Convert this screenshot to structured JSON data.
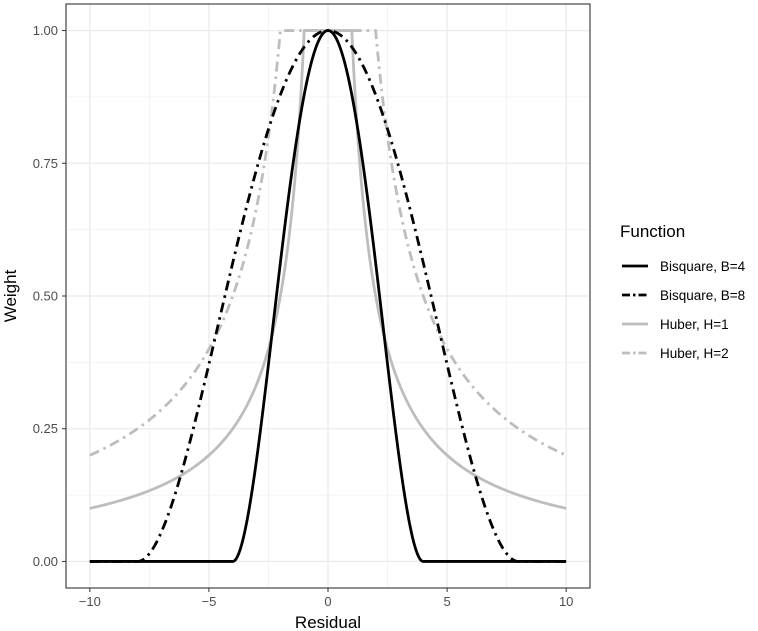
{
  "chart_data": {
    "type": "line",
    "title": "",
    "xlabel": "Residual",
    "ylabel": "Weight",
    "xlim": [
      -11,
      11
    ],
    "ylim": [
      -0.05,
      1.05
    ],
    "xticks": [
      -10,
      -5,
      0,
      5,
      10
    ],
    "xtick_labels": [
      "−10",
      "−5",
      "0",
      "5",
      "10"
    ],
    "yticks": [
      0,
      0.25,
      0.5,
      0.75,
      1.0
    ],
    "ytick_labels": [
      "0.00",
      "0.25",
      "0.50",
      "0.75",
      "1.00"
    ],
    "x_minor": [
      -7.5,
      -2.5,
      2.5,
      7.5
    ],
    "y_minor": [
      0.125,
      0.375,
      0.625,
      0.875
    ],
    "grid": true,
    "legend": {
      "title": "Function",
      "placement": "right"
    },
    "series": [
      {
        "name": "Bisquare, B=4",
        "function": "bisquare",
        "tuning": 4,
        "color": "#000000",
        "dash": "solid",
        "x": [
          -10,
          -4,
          -3.5,
          -3,
          -2.5,
          -2,
          -1.5,
          -1,
          -0.5,
          0,
          0.5,
          1,
          1.5,
          2,
          2.5,
          3,
          3.5,
          4,
          10
        ],
        "y": [
          0,
          0,
          0.055,
          0.191,
          0.372,
          0.563,
          0.738,
          0.879,
          0.969,
          1,
          0.969,
          0.879,
          0.738,
          0.563,
          0.372,
          0.191,
          0.055,
          0,
          0
        ]
      },
      {
        "name": "Bisquare, B=8",
        "function": "bisquare",
        "tuning": 8,
        "color": "#000000",
        "dash": "dashdot",
        "x": [
          -10,
          -8,
          -7,
          -6,
          -5,
          -4,
          -3,
          -2,
          -1,
          0,
          1,
          2,
          3,
          4,
          5,
          6,
          7,
          8,
          10
        ],
        "y": [
          0,
          0,
          0.055,
          0.191,
          0.372,
          0.563,
          0.738,
          0.879,
          0.969,
          1,
          0.969,
          0.879,
          0.738,
          0.563,
          0.372,
          0.191,
          0.055,
          0,
          0
        ]
      },
      {
        "name": "Huber, H=1",
        "function": "huber",
        "tuning": 1,
        "color": "#bdbdbd",
        "dash": "solid",
        "x": [
          -10,
          -8,
          -6,
          -5,
          -4,
          -3,
          -2,
          -1.5,
          -1,
          0,
          1,
          1.5,
          2,
          3,
          4,
          5,
          6,
          8,
          10
        ],
        "y": [
          0.1,
          0.125,
          0.167,
          0.2,
          0.25,
          0.333,
          0.5,
          0.667,
          1,
          1,
          1,
          0.667,
          0.5,
          0.333,
          0.25,
          0.2,
          0.167,
          0.125,
          0.1
        ]
      },
      {
        "name": "Huber, H=2",
        "function": "huber",
        "tuning": 2,
        "color": "#bdbdbd",
        "dash": "dashdot",
        "x": [
          -10,
          -8,
          -6,
          -5,
          -4,
          -3,
          -2.5,
          -2,
          0,
          2,
          2.5,
          3,
          4,
          5,
          6,
          8,
          10
        ],
        "y": [
          0.2,
          0.25,
          0.333,
          0.4,
          0.5,
          0.667,
          0.8,
          1,
          1,
          1,
          0.8,
          0.667,
          0.5,
          0.4,
          0.333,
          0.25,
          0.2
        ]
      }
    ]
  }
}
